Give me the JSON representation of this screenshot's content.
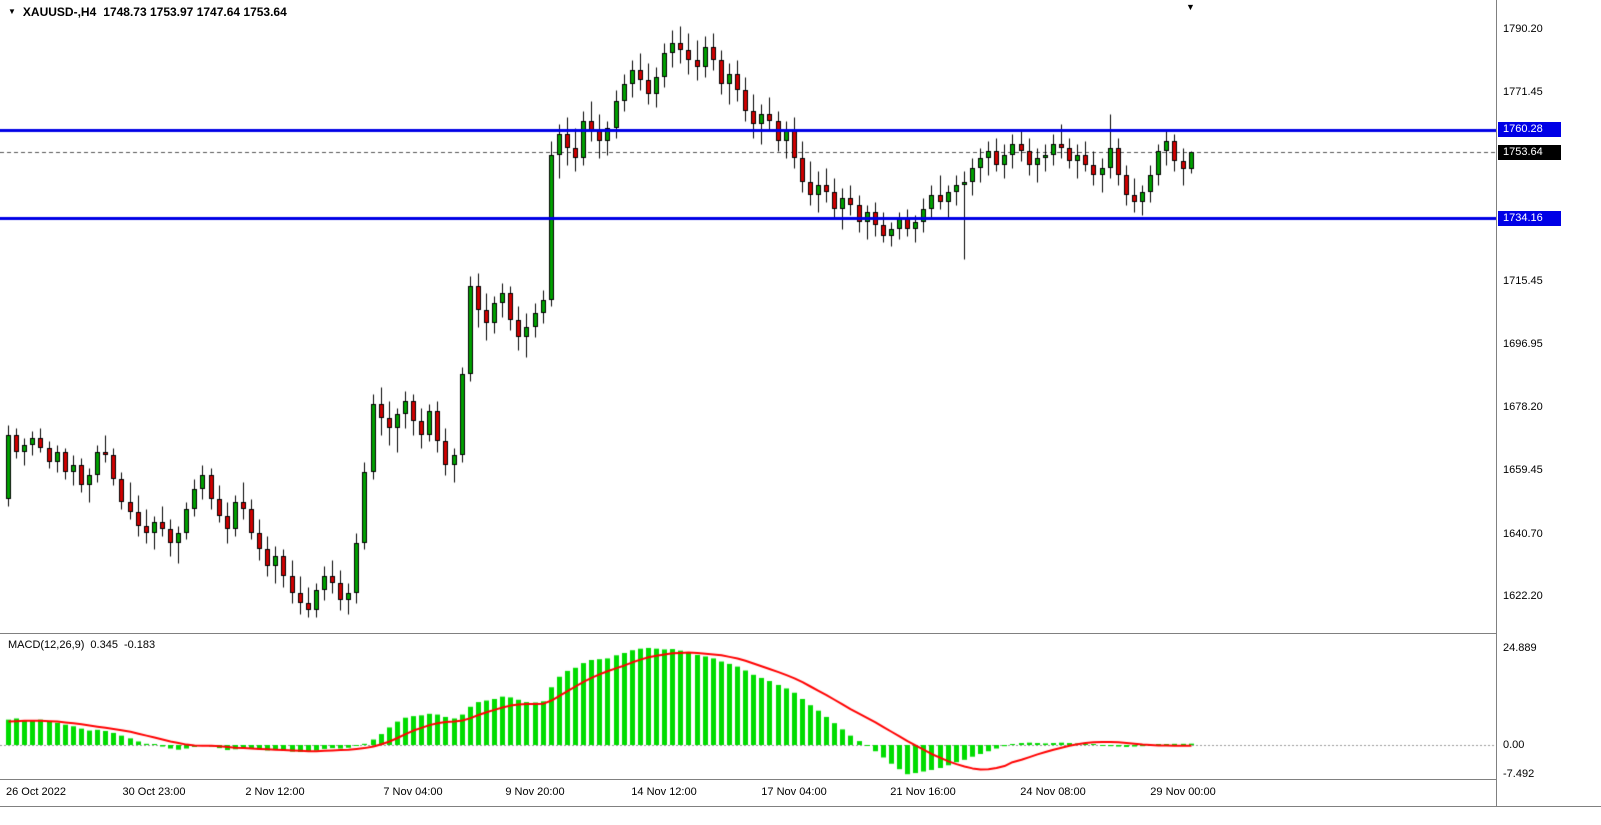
{
  "icons": {
    "dropdown": "▼",
    "shift_marker": "▼"
  },
  "header": {
    "symbol": "XAUUSD-,H4",
    "ohlc": "1748.73 1753.97 1747.64 1753.64"
  },
  "indicator": {
    "label": "MACD(12,26,9)",
    "value_main": "0.345",
    "value_signal": "-0.183"
  },
  "chart_data": {
    "type": "candlestick",
    "symbol": "XAUUSD-",
    "timeframe": "H4",
    "current_ohlc": {
      "open": 1748.73,
      "high": 1753.97,
      "low": 1747.64,
      "close": 1753.64
    },
    "price_ticks": [
      "1790.20",
      "1771.45",
      "1715.45",
      "1696.95",
      "1678.20",
      "1659.45",
      "1640.70",
      "1622.20"
    ],
    "hlines": [
      {
        "price": 1760.28,
        "label": "1760.28"
      },
      {
        "price": 1734.16,
        "label": "1734.16"
      }
    ],
    "bid": {
      "price": 1753.64,
      "label": "1753.64"
    },
    "time_ticks": [
      {
        "candle": 0,
        "label": "26 Oct 2022"
      },
      {
        "candle": 18,
        "label": "30 Oct 23:00"
      },
      {
        "candle": 33,
        "label": "2 Nov 12:00"
      },
      {
        "candle": 50,
        "label": "7 Nov 04:00"
      },
      {
        "candle": 65,
        "label": "9 Nov 20:00"
      },
      {
        "candle": 81,
        "label": "14 Nov 12:00"
      },
      {
        "candle": 97,
        "label": "17 Nov 04:00"
      },
      {
        "candle": 113,
        "label": "21 Nov 16:00"
      },
      {
        "candle": 129,
        "label": "24 Nov 08:00"
      },
      {
        "candle": 145,
        "label": "29 Nov 00:00"
      }
    ],
    "candles": [
      [
        1651,
        1673,
        1649,
        1670
      ],
      [
        1670,
        1672,
        1663,
        1665
      ],
      [
        1665,
        1669,
        1661,
        1667
      ],
      [
        1667,
        1671,
        1664,
        1669
      ],
      [
        1669,
        1672,
        1665,
        1666
      ],
      [
        1666,
        1668,
        1660,
        1662
      ],
      [
        1662,
        1667,
        1659,
        1665
      ],
      [
        1665,
        1666,
        1657,
        1659
      ],
      [
        1659,
        1664,
        1655,
        1661
      ],
      [
        1661,
        1663,
        1653,
        1655
      ],
      [
        1655,
        1660,
        1650,
        1658
      ],
      [
        1658,
        1667,
        1656,
        1665
      ],
      [
        1665,
        1670,
        1662,
        1664
      ],
      [
        1664,
        1666,
        1655,
        1657
      ],
      [
        1657,
        1659,
        1648,
        1650
      ],
      [
        1650,
        1656,
        1645,
        1647
      ],
      [
        1647,
        1652,
        1640,
        1643
      ],
      [
        1643,
        1648,
        1638,
        1641
      ],
      [
        1641,
        1646,
        1636,
        1644
      ],
      [
        1644,
        1649,
        1640,
        1642
      ],
      [
        1642,
        1645,
        1634,
        1638
      ],
      [
        1638,
        1643,
        1632,
        1641
      ],
      [
        1641,
        1650,
        1639,
        1648
      ],
      [
        1648,
        1657,
        1646,
        1654
      ],
      [
        1654,
        1661,
        1651,
        1658
      ],
      [
        1658,
        1660,
        1648,
        1651
      ],
      [
        1651,
        1655,
        1644,
        1646
      ],
      [
        1646,
        1650,
        1638,
        1642
      ],
      [
        1642,
        1652,
        1640,
        1650
      ],
      [
        1650,
        1656,
        1645,
        1648
      ],
      [
        1648,
        1651,
        1639,
        1641
      ],
      [
        1641,
        1645,
        1633,
        1636
      ],
      [
        1636,
        1640,
        1628,
        1631
      ],
      [
        1631,
        1637,
        1626,
        1634
      ],
      [
        1634,
        1636,
        1625,
        1628
      ],
      [
        1628,
        1633,
        1620,
        1623
      ],
      [
        1623,
        1628,
        1617,
        1620
      ],
      [
        1620,
        1625,
        1616,
        1618
      ],
      [
        1618,
        1626,
        1616,
        1624
      ],
      [
        1624,
        1631,
        1621,
        1628
      ],
      [
        1628,
        1633,
        1623,
        1626
      ],
      [
        1626,
        1630,
        1618,
        1621
      ],
      [
        1621,
        1626,
        1617,
        1623
      ],
      [
        1623,
        1641,
        1620,
        1638
      ],
      [
        1638,
        1662,
        1636,
        1659
      ],
      [
        1659,
        1682,
        1657,
        1679
      ],
      [
        1679,
        1684,
        1670,
        1675
      ],
      [
        1675,
        1680,
        1667,
        1672
      ],
      [
        1672,
        1678,
        1665,
        1676
      ],
      [
        1676,
        1683,
        1672,
        1680
      ],
      [
        1680,
        1682,
        1670,
        1674
      ],
      [
        1674,
        1678,
        1666,
        1670
      ],
      [
        1670,
        1679,
        1668,
        1677
      ],
      [
        1677,
        1680,
        1665,
        1668
      ],
      [
        1668,
        1672,
        1658,
        1661
      ],
      [
        1661,
        1666,
        1656,
        1664
      ],
      [
        1664,
        1690,
        1662,
        1688
      ],
      [
        1688,
        1717,
        1686,
        1714
      ],
      [
        1714,
        1718,
        1702,
        1707
      ],
      [
        1707,
        1712,
        1698,
        1703
      ],
      [
        1703,
        1711,
        1700,
        1709
      ],
      [
        1709,
        1715,
        1705,
        1712
      ],
      [
        1712,
        1714,
        1701,
        1704
      ],
      [
        1704,
        1708,
        1695,
        1699
      ],
      [
        1699,
        1706,
        1693,
        1702
      ],
      [
        1702,
        1709,
        1699,
        1706
      ],
      [
        1706,
        1713,
        1703,
        1710
      ],
      [
        1710,
        1757,
        1708,
        1753
      ],
      [
        1753,
        1762,
        1746,
        1759
      ],
      [
        1759,
        1764,
        1750,
        1755
      ],
      [
        1755,
        1761,
        1748,
        1752
      ],
      [
        1752,
        1766,
        1750,
        1763
      ],
      [
        1763,
        1769,
        1757,
        1760
      ],
      [
        1760,
        1765,
        1752,
        1757
      ],
      [
        1757,
        1763,
        1753,
        1761
      ],
      [
        1761,
        1772,
        1758,
        1769
      ],
      [
        1769,
        1777,
        1766,
        1774
      ],
      [
        1774,
        1781,
        1770,
        1778
      ],
      [
        1778,
        1783,
        1772,
        1775
      ],
      [
        1775,
        1780,
        1768,
        1771
      ],
      [
        1771,
        1779,
        1767,
        1776
      ],
      [
        1776,
        1786,
        1773,
        1783
      ],
      [
        1783,
        1790,
        1779,
        1786
      ],
      [
        1786,
        1791,
        1780,
        1784
      ],
      [
        1784,
        1789,
        1777,
        1781
      ],
      [
        1781,
        1787,
        1775,
        1779
      ],
      [
        1779,
        1788,
        1776,
        1785
      ],
      [
        1785,
        1789,
        1778,
        1781
      ],
      [
        1781,
        1784,
        1771,
        1774
      ],
      [
        1774,
        1780,
        1768,
        1777
      ],
      [
        1777,
        1781,
        1769,
        1772
      ],
      [
        1772,
        1776,
        1763,
        1766
      ],
      [
        1766,
        1771,
        1758,
        1762
      ],
      [
        1762,
        1768,
        1756,
        1765
      ],
      [
        1765,
        1770,
        1760,
        1763
      ],
      [
        1763,
        1766,
        1754,
        1757
      ],
      [
        1757,
        1763,
        1752,
        1760
      ],
      [
        1760,
        1764,
        1749,
        1752
      ],
      [
        1752,
        1757,
        1742,
        1745
      ],
      [
        1745,
        1751,
        1738,
        1741
      ],
      [
        1741,
        1748,
        1736,
        1744
      ],
      [
        1744,
        1749,
        1739,
        1742
      ],
      [
        1742,
        1746,
        1734,
        1737
      ],
      [
        1737,
        1743,
        1731,
        1740
      ],
      [
        1740,
        1744,
        1735,
        1738
      ],
      [
        1738,
        1741,
        1730,
        1733
      ],
      [
        1733,
        1738,
        1728,
        1736
      ],
      [
        1736,
        1739,
        1729,
        1732
      ],
      [
        1732,
        1736,
        1727,
        1729
      ],
      [
        1729,
        1733,
        1726,
        1731
      ],
      [
        1731,
        1736,
        1728,
        1734
      ],
      [
        1734,
        1737,
        1729,
        1731
      ],
      [
        1731,
        1735,
        1727,
        1733
      ],
      [
        1733,
        1740,
        1730,
        1737
      ],
      [
        1737,
        1744,
        1734,
        1741
      ],
      [
        1741,
        1747,
        1737,
        1739
      ],
      [
        1739,
        1744,
        1734,
        1742
      ],
      [
        1742,
        1747,
        1738,
        1744
      ],
      [
        1744,
        1748,
        1722,
        1745
      ],
      [
        1745,
        1752,
        1741,
        1749
      ],
      [
        1749,
        1755,
        1745,
        1752
      ],
      [
        1752,
        1757,
        1747,
        1754
      ],
      [
        1754,
        1758,
        1748,
        1750
      ],
      [
        1750,
        1756,
        1746,
        1753
      ],
      [
        1753,
        1759,
        1749,
        1756
      ],
      [
        1756,
        1760,
        1751,
        1754
      ],
      [
        1754,
        1758,
        1747,
        1750
      ],
      [
        1750,
        1755,
        1745,
        1752
      ],
      [
        1752,
        1756,
        1748,
        1753
      ],
      [
        1753,
        1759,
        1750,
        1756
      ],
      [
        1756,
        1762,
        1752,
        1755
      ],
      [
        1755,
        1758,
        1749,
        1751
      ],
      [
        1751,
        1756,
        1746,
        1753
      ],
      [
        1753,
        1757,
        1748,
        1750
      ],
      [
        1750,
        1754,
        1744,
        1747
      ],
      [
        1747,
        1752,
        1742,
        1749
      ],
      [
        1749,
        1765,
        1746,
        1755
      ],
      [
        1755,
        1758,
        1744,
        1747
      ],
      [
        1747,
        1750,
        1738,
        1741
      ],
      [
        1741,
        1746,
        1736,
        1739
      ],
      [
        1739,
        1744,
        1735,
        1742
      ],
      [
        1742,
        1750,
        1739,
        1747
      ],
      [
        1747,
        1756,
        1744,
        1754
      ],
      [
        1754,
        1760,
        1750,
        1757
      ],
      [
        1757,
        1759,
        1748,
        1751
      ],
      [
        1751,
        1755,
        1744,
        1748.7
      ],
      [
        1748.73,
        1753.97,
        1747.64,
        1753.64
      ]
    ],
    "macd": {
      "params": [
        12,
        26,
        9
      ],
      "ticks": [
        "24.889",
        "0.00",
        "-7.492"
      ],
      "histogram": [
        6.5,
        6.8,
        6.4,
        6.2,
        6.5,
        6.1,
        5.7,
        5.2,
        4.8,
        4.2,
        3.7,
        3.9,
        3.6,
        3.1,
        2.4,
        1.7,
        0.9,
        0.3,
        0.1,
        -0.4,
        -0.9,
        -1.2,
        -0.9,
        -0.5,
        -0.2,
        -0.4,
        -0.8,
        -1.3,
        -1.1,
        -0.8,
        -0.9,
        -1.1,
        -1.4,
        -1.2,
        -1.4,
        -1.7,
        -1.8,
        -1.7,
        -1.4,
        -1.0,
        -0.8,
        -0.9,
        -0.7,
        -0.2,
        0.3,
        1.4,
        2.8,
        4.5,
        6.0,
        7.0,
        7.4,
        7.6,
        8.0,
        7.8,
        7.2,
        6.8,
        7.8,
        9.8,
        11.0,
        11.4,
        11.8,
        12.4,
        12.2,
        11.6,
        11.0,
        10.9,
        11.2,
        14.8,
        17.5,
        19.0,
        19.8,
        21.0,
        21.8,
        22.0,
        22.2,
        23.0,
        23.6,
        24.3,
        24.7,
        24.889,
        24.7,
        24.5,
        24.6,
        24.2,
        23.7,
        23.1,
        22.7,
        22.2,
        21.4,
        20.8,
        20.1,
        19.1,
        18.0,
        17.2,
        16.4,
        15.4,
        14.5,
        13.4,
        11.8,
        10.2,
        8.8,
        7.2,
        5.6,
        4.0,
        2.4,
        1.0,
        -0.2,
        -1.6,
        -3.2,
        -4.8,
        -6.2,
        -7.49,
        -7.2,
        -6.8,
        -6.4,
        -5.9,
        -5.2,
        -4.4,
        -3.8,
        -3.0,
        -2.3,
        -1.6,
        -0.9,
        -0.3,
        0.2,
        0.5,
        0.6,
        0.5,
        0.4,
        0.5,
        0.6,
        0.5,
        0.4,
        0.2,
        0,
        -0.2,
        -0.3,
        -0.4,
        -0.5,
        -0.4,
        -0.3,
        -0.1,
        0.1,
        0.2,
        0.3,
        0.3,
        0.345
      ],
      "signal": [
        6.0,
        6.1,
        6.2,
        6.2,
        6.2,
        6.1,
        6.0,
        5.8,
        5.6,
        5.3,
        5.0,
        4.7,
        4.4,
        4.1,
        3.8,
        3.4,
        2.9,
        2.4,
        1.9,
        1.4,
        0.9,
        0.5,
        0.1,
        -0.1,
        -0.2,
        -0.2,
        -0.3,
        -0.5,
        -0.7,
        -0.8,
        -0.9,
        -1.0,
        -1.1,
        -1.2,
        -1.3,
        -1.4,
        -1.5,
        -1.6,
        -1.6,
        -1.5,
        -1.4,
        -1.3,
        -1.2,
        -1.0,
        -0.8,
        -0.4,
        0.2,
        0.9,
        1.8,
        2.8,
        3.7,
        4.4,
        5.1,
        5.6,
        5.9,
        6.0,
        6.3,
        6.9,
        7.7,
        8.4,
        9.0,
        9.6,
        10.1,
        10.4,
        10.5,
        10.5,
        10.6,
        11.4,
        12.6,
        13.8,
        15.0,
        16.2,
        17.2,
        18.1,
        18.9,
        19.7,
        20.4,
        21.2,
        21.9,
        22.5,
        22.9,
        23.2,
        23.5,
        23.6,
        23.7,
        23.6,
        23.4,
        23.2,
        23.0,
        22.6,
        22.2,
        21.6,
        20.9,
        20.2,
        19.5,
        18.7,
        17.9,
        17.1,
        16.1,
        15.0,
        13.9,
        12.8,
        11.6,
        10.4,
        9.2,
        8.0,
        6.9,
        5.8,
        4.6,
        3.4,
        2.2,
        1.0,
        -0.1,
        -1.2,
        -2.3,
        -3.3,
        -4.2,
        -4.9,
        -5.5,
        -6.0,
        -6.3,
        -6.2,
        -5.9,
        -5.4,
        -4.4,
        -3.8,
        -3.1,
        -2.4,
        -1.8,
        -1.2,
        -0.7,
        -0.2,
        0.2,
        0.5,
        0.7,
        0.8,
        0.8,
        0.7,
        0.5,
        0.3,
        0.1,
        0,
        -0.1,
        -0.1,
        -0.2,
        -0.2,
        -0.183
      ]
    },
    "colors": {
      "bull": "#00A000",
      "bear": "#D00000",
      "wick": "#000000",
      "hline": "#0000E6",
      "bid_line": "#555555",
      "bid_badge_bg": "#000000",
      "histogram": "#00DC00",
      "signal": "#FF0000"
    }
  }
}
